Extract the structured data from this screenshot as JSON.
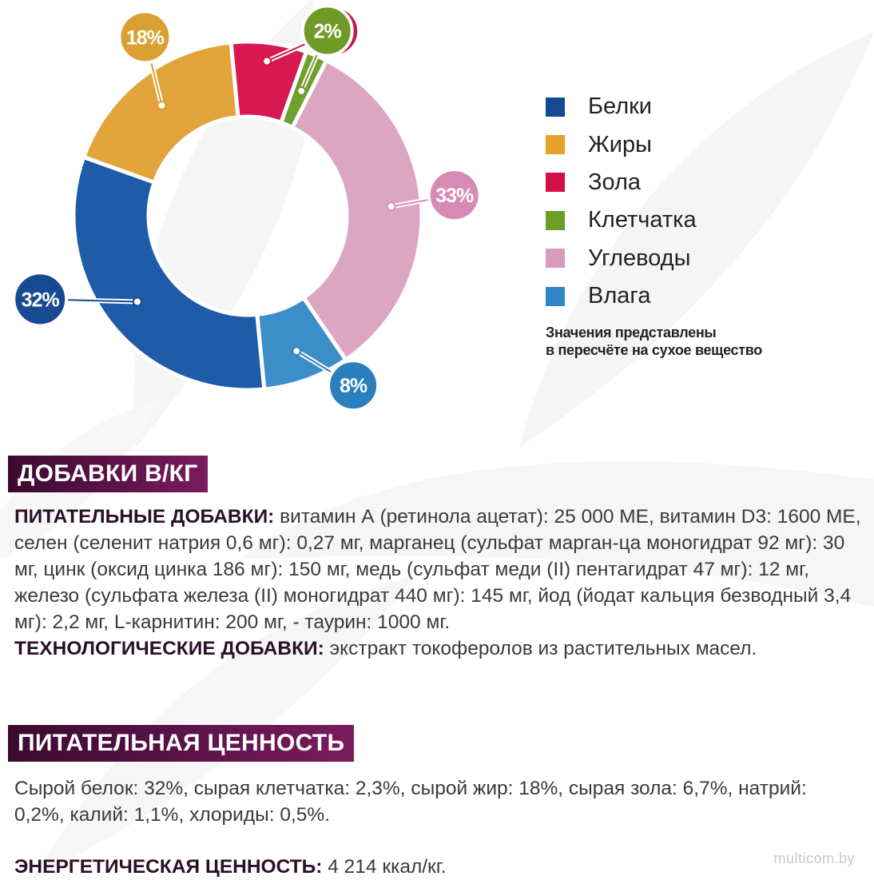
{
  "chart_data": {
    "type": "pie",
    "categories": [
      "Белки",
      "Жиры",
      "Зола",
      "Клетчатка",
      "Углеводы",
      "Влага"
    ],
    "values": [
      32,
      18,
      7,
      2,
      33,
      8
    ],
    "value_labels": [
      "32%",
      "18%",
      "7%",
      "2%",
      "33%",
      "8%"
    ],
    "colors": [
      "#1e5ba8",
      "#e2a43a",
      "#d8194f",
      "#6f9f2c",
      "#dca6c2",
      "#3b8ec8"
    ],
    "badge_colors": [
      "#174a93",
      "#dba033",
      "#c9164a",
      "#6f9a27",
      "#d58bb4",
      "#2c7fbf"
    ],
    "legend_colors": [
      "#134a94",
      "#e4a22b",
      "#d21247",
      "#6d9f24",
      "#d99bbd",
      "#2f86c7"
    ],
    "legend_placement": "right",
    "note": "Значения представлены в пересчёте на сухое вещество"
  },
  "legend": {
    "items": [
      "Белки",
      "Жиры",
      "Зола",
      "Клетчатка",
      "Углеводы",
      "Влага"
    ]
  },
  "note": {
    "line1": "Значения представлены",
    "line2": "в пересчёте на сухое вещество"
  },
  "additives": {
    "title": "ДОБАВКИ В/КГ",
    "nutritional_label": "ПИТАТЕЛЬНЫЕ ДОБАВКИ:",
    "nutritional_text": " витамин А (ретинола ацетат): 25 000 МЕ, витамин D3: 1600 МЕ, селен (селенит натрия 0,6 мг): 0,27 мг, марганец (сульфат марган-ца моногидрат 92 мг): 30 мг, цинк (оксид цинка 186 мг): 150 мг, медь (сульфат меди (II) пентагидрат 47 мг): 12 мг, железо (сульфата железа (II) моногидрат 440 мг): 145 мг, йод (йодат кальция безводный 3,4 мг): 2,2 мг, L-карнитин: 200 мг, - таурин: 1000 мг.",
    "technological_label": "ТЕХНОЛОГИЧЕСКИЕ ДОБАВКИ:",
    "technological_text": " экстракт токоферолов из растительных масел."
  },
  "nutrition": {
    "title": "ПИТАТЕЛЬНАЯ ЦЕННОСТЬ",
    "text": "Сырой белок: 32%, сырая клетчатка: 2,3%, сырой жир: 18%, сырая зола: 6,7%, натрий: 0,2%, калий: 1,1%, хлориды: 0,5%.",
    "energy_label": "ЭНЕРГЕТИЧЕСКАЯ ЦЕННОСТЬ:",
    "energy_value": " 4 214 ккал/кг."
  },
  "watermark": "multicom.by"
}
